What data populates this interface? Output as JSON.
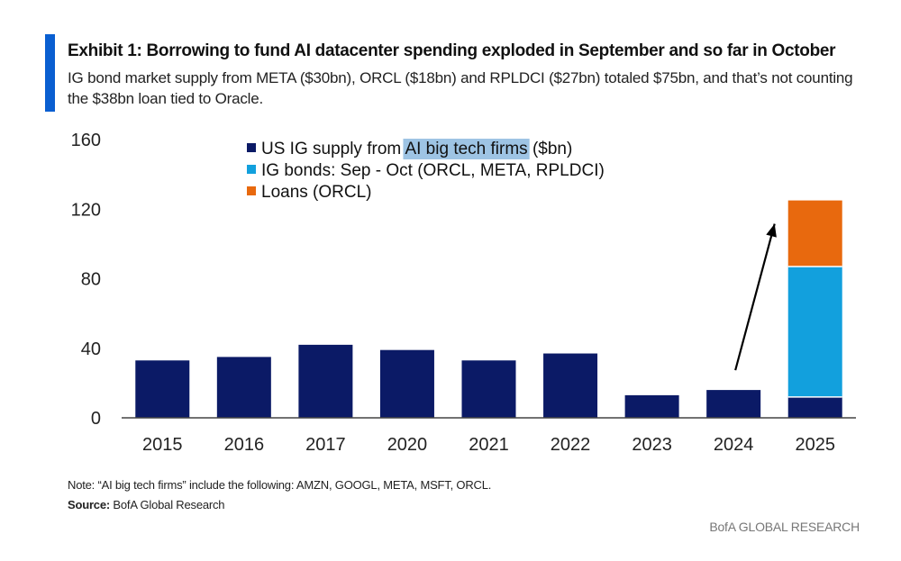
{
  "header": {
    "title": "Exhibit 1:  Borrowing to fund AI datacenter spending exploded in September and so far in October",
    "subtitle": "IG bond market supply from META ($30bn), ORCL ($18bn) and RPLDCI ($27bn) totaled $75bn, and that’s not counting the $38bn loan tied to Oracle."
  },
  "colors": {
    "accent": "#0a5fd1",
    "us_ig": "#0b1a66",
    "ig_bonds": "#12a0dd",
    "loans": "#e8690e",
    "highlight": "#9ec4e4"
  },
  "chart_data": {
    "type": "bar",
    "stacked": true,
    "categories": [
      "2015",
      "2016",
      "2017",
      "2020",
      "2021",
      "2022",
      "2023",
      "2024",
      "2025"
    ],
    "series": [
      {
        "name": "US IG supply from AI big tech firms ($bn)",
        "values": [
          33,
          35,
          42,
          39,
          33,
          37,
          13,
          16,
          12
        ]
      },
      {
        "name": "IG bonds: Sep - Oct (ORCL, META, RPLDCI)",
        "values": [
          0,
          0,
          0,
          0,
          0,
          0,
          0,
          0,
          75
        ]
      },
      {
        "name": "Loans (ORCL)",
        "values": [
          0,
          0,
          0,
          0,
          0,
          0,
          0,
          0,
          38
        ]
      }
    ],
    "legend": {
      "items": [
        {
          "prefix": "US IG supply from ",
          "highlight": "AI big tech firms",
          "suffix": " ($bn)"
        },
        {
          "prefix": "IG bonds: Sep - Oct (ORCL, META, RPLDCI)",
          "highlight": "",
          "suffix": ""
        },
        {
          "prefix": "Loans (ORCL)",
          "highlight": "",
          "suffix": ""
        }
      ],
      "position": "top-center"
    },
    "yticks": [
      0,
      40,
      80,
      120,
      160
    ],
    "ylim": [
      0,
      160
    ],
    "annotation": "arrow from 2024 bar to 2025 bar",
    "xlabel": "",
    "ylabel": ""
  },
  "footer": {
    "note": "Note: “AI big tech firms” include the following: AMZN, GOOGL, META, MSFT, ORCL.",
    "source_label": "Source:",
    "source_text": " BofA Global Research",
    "brand": "BofA GLOBAL RESEARCH"
  }
}
